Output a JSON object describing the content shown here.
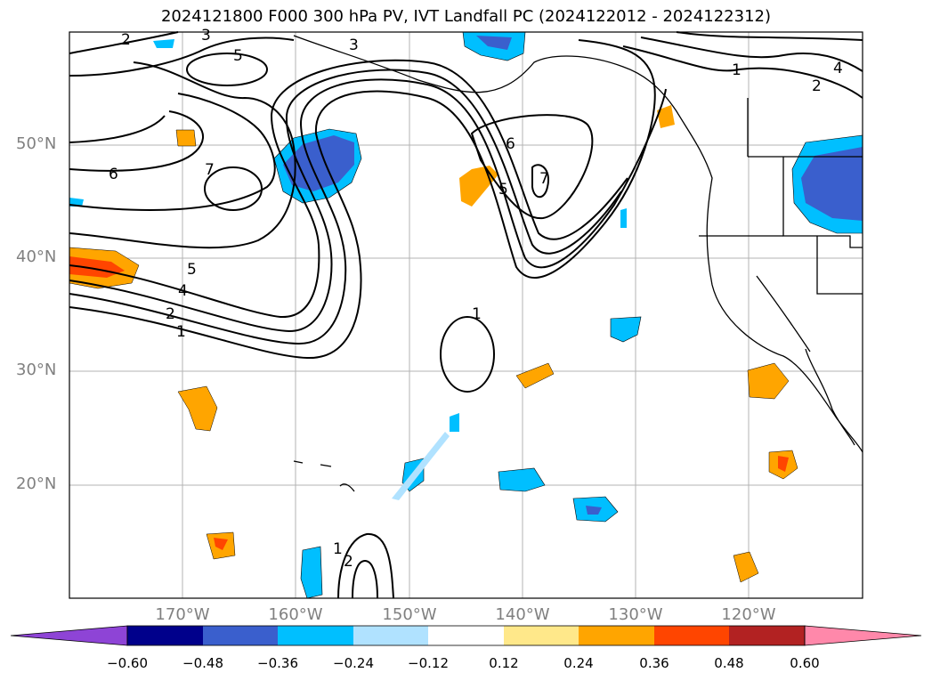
{
  "title": "2024121800 F000 300 hPa PV, IVT Landfall PC (2024122012 - 2024122312)",
  "map": {
    "lat_labels": [
      "50°N",
      "40°N",
      "30°N",
      "20°N"
    ],
    "lon_labels": [
      "170°W",
      "160°W",
      "150°W",
      "140°W",
      "130°W",
      "120°W"
    ],
    "contour_labels": [
      "2",
      "3",
      "5",
      "3",
      "1",
      "4",
      "2",
      "6",
      "7",
      "6",
      "7",
      "5",
      "5",
      "4",
      "2",
      "1",
      "1",
      "1",
      "2"
    ]
  },
  "colorbar": {
    "ticks": [
      "−0.60",
      "−0.48",
      "−0.36",
      "−0.24",
      "−0.12",
      "0.12",
      "0.24",
      "0.36",
      "0.48",
      "0.60"
    ],
    "colors": [
      "#8e44d6",
      "#00008b",
      "#3a5fcd",
      "#00bfff",
      "#b0e2ff",
      "#ffffff",
      "#ffe88a",
      "#ffa500",
      "#ff4500",
      "#b22222",
      "#ff88aa"
    ]
  }
}
